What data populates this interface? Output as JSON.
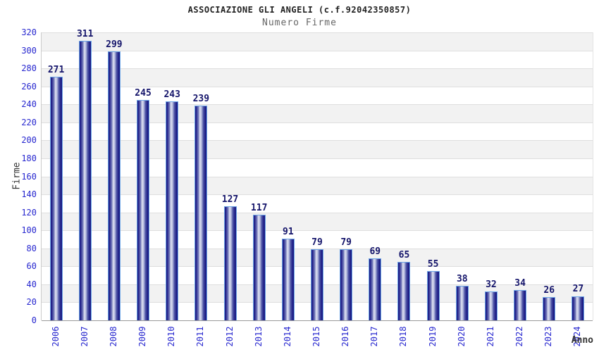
{
  "chart_data": {
    "type": "bar",
    "title": "ASSOCIAZIONE GLI ANGELI (c.f.92042350857)",
    "subtitle": "Numero Firme",
    "xlabel": "Anno",
    "ylabel": "Firme",
    "categories": [
      "2006",
      "2007",
      "2008",
      "2009",
      "2010",
      "2011",
      "2012",
      "2013",
      "2014",
      "2015",
      "2016",
      "2017",
      "2018",
      "2019",
      "2020",
      "2021",
      "2022",
      "2023",
      "2024"
    ],
    "values": [
      271,
      311,
      299,
      245,
      243,
      239,
      127,
      117,
      91,
      79,
      79,
      69,
      65,
      55,
      38,
      32,
      34,
      26,
      27
    ],
    "ylim": [
      0,
      320
    ],
    "ytick_step": 20,
    "grid": true,
    "legend": "none",
    "colors": {
      "bar_dark": "#1a1a80",
      "bar_light": "#dfe2f2",
      "bar_border": "#6ca4e6",
      "tick_label": "#2727cf",
      "value_label": "#15156b",
      "band_gray": "#f2f2f2",
      "gridline": "#dedede",
      "axis_line": "#999999",
      "title_color": "#222222",
      "subtitle_color": "#666666"
    }
  }
}
